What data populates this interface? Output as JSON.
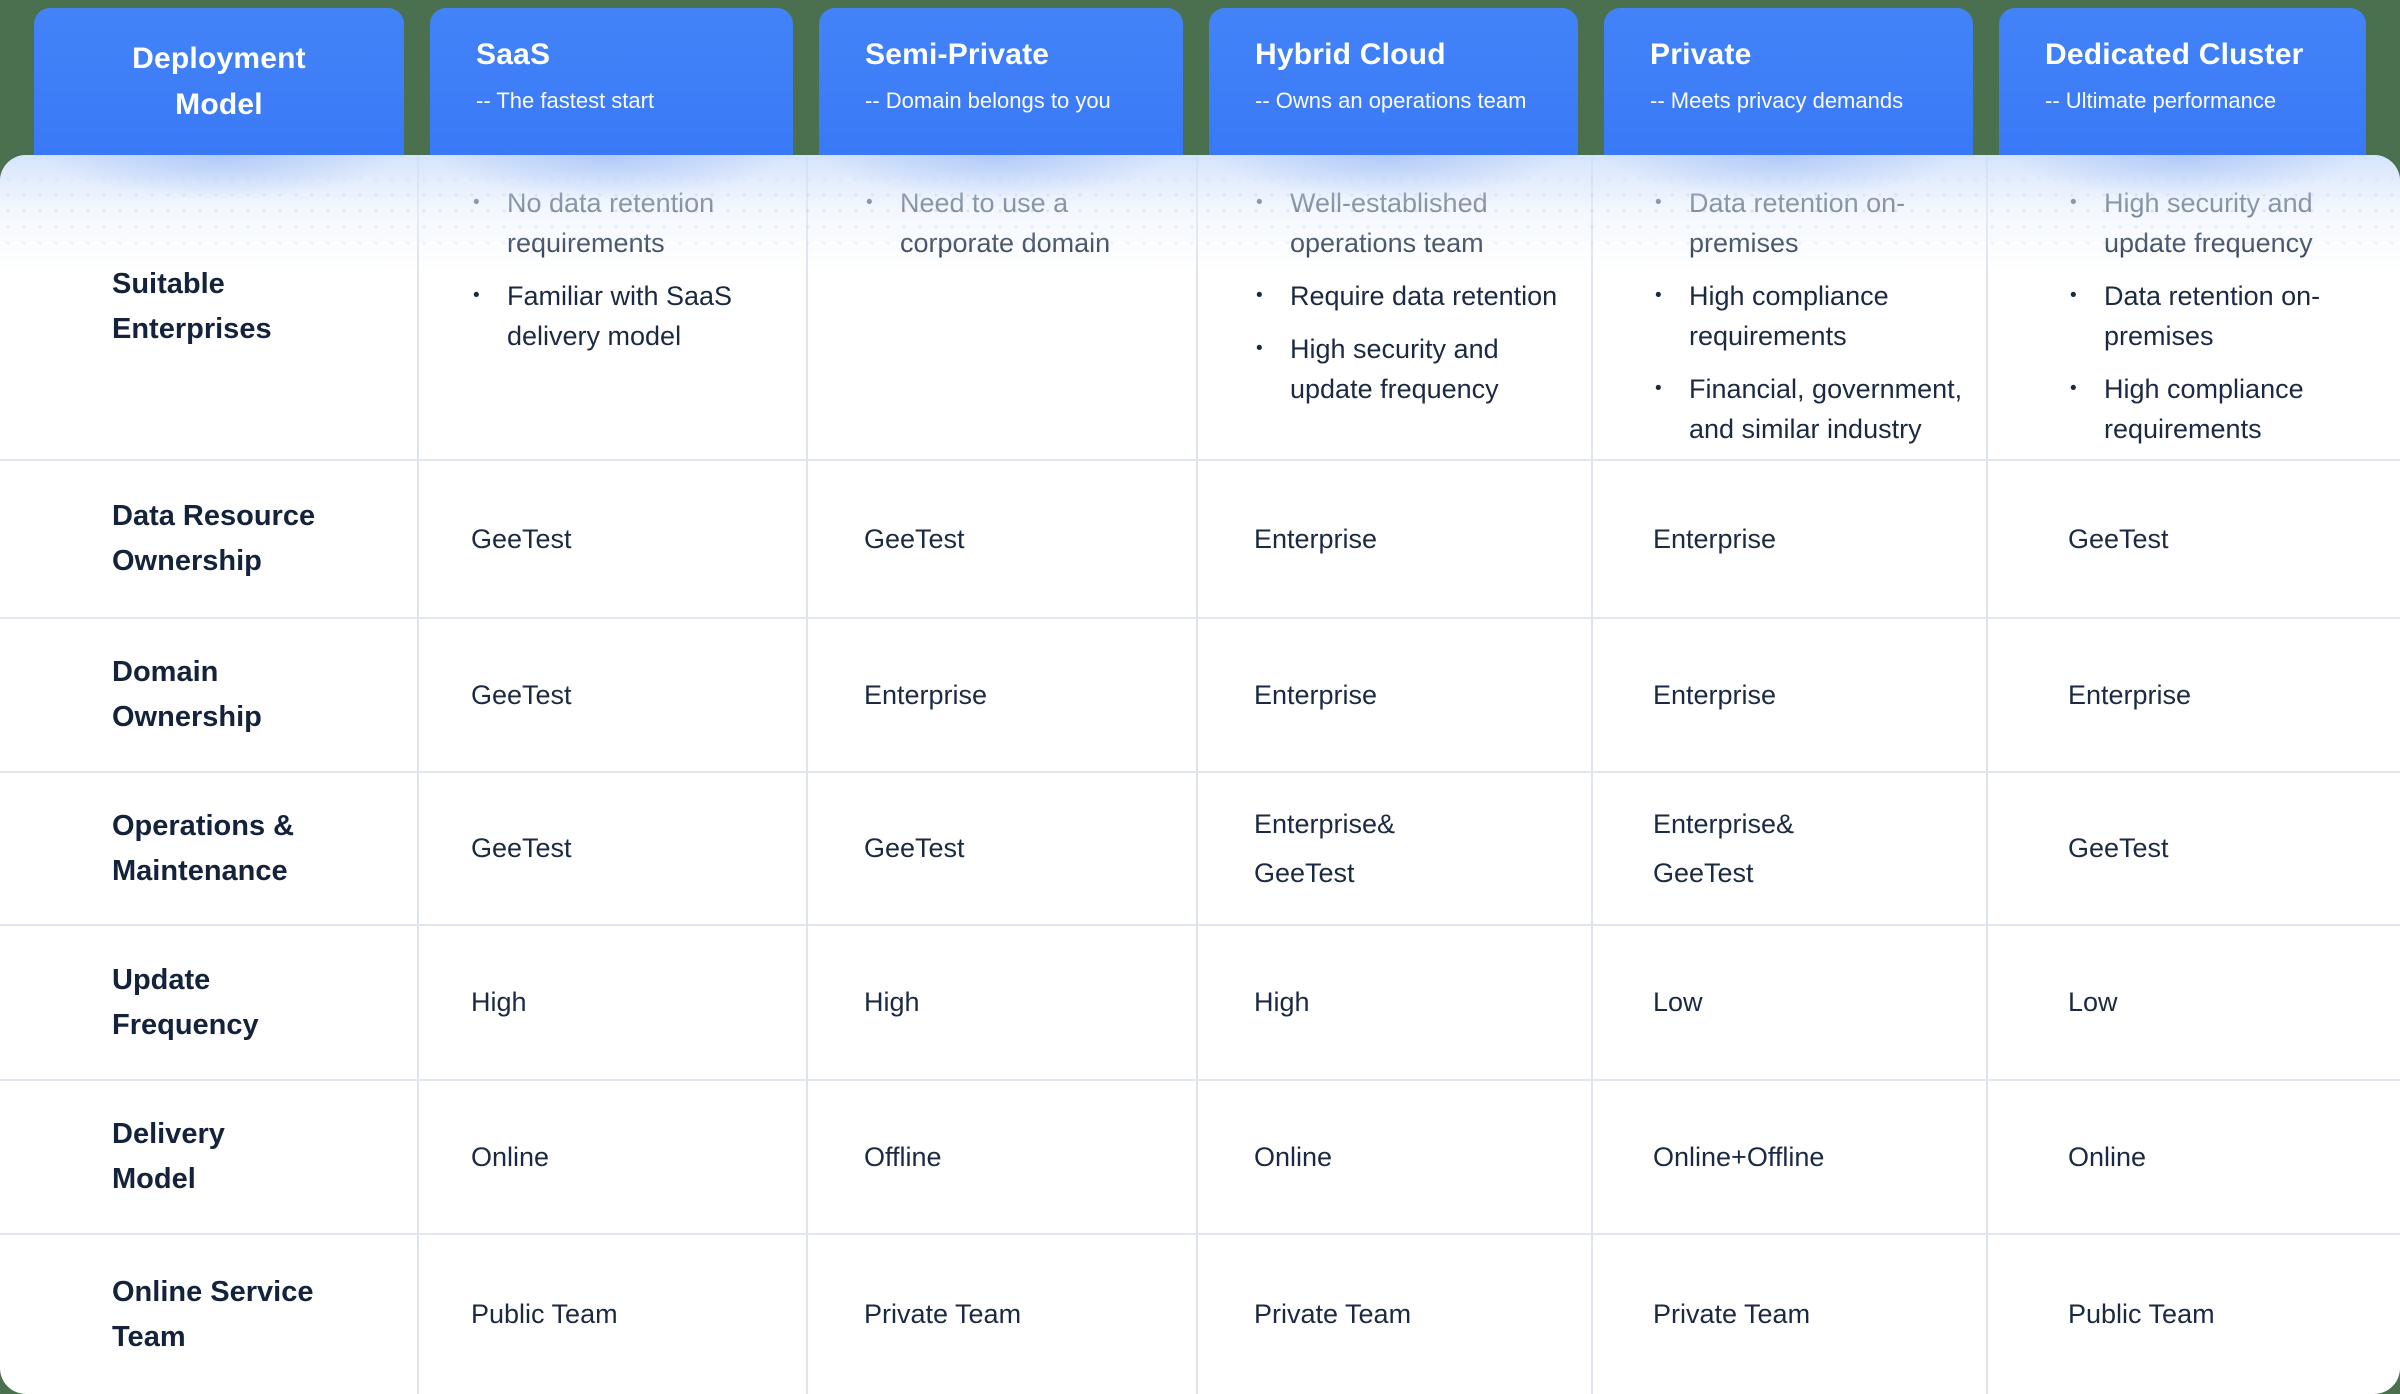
{
  "colors": {
    "background_green": "#4A7050",
    "header_blue": "#3C7CF7",
    "body_text": "#1B2A42",
    "grid_line": "#E3E6EE"
  },
  "chart_data": {
    "type": "table",
    "corner_header": {
      "title": "Deployment Model",
      "title_lines": [
        "Deployment",
        "Model"
      ]
    },
    "columns": [
      {
        "title": "SaaS",
        "subtitle": "-- The fastest start"
      },
      {
        "title": "Semi-Private",
        "subtitle": "-- Domain belongs to you"
      },
      {
        "title": "Hybrid Cloud",
        "subtitle": "-- Owns an operations team"
      },
      {
        "title": "Private",
        "subtitle": "-- Meets privacy demands"
      },
      {
        "title": "Dedicated Cluster",
        "subtitle": "-- Ultimate performance"
      }
    ],
    "rows": [
      {
        "label": "Suitable Enterprises",
        "label_lines": [
          "Suitable",
          "Enterprises"
        ],
        "style": "bullets",
        "cells": [
          {
            "bullets": [
              "No data retention requirements",
              "Familiar with SaaS delivery model"
            ]
          },
          {
            "bullets": [
              "Need to use a corporate domain"
            ]
          },
          {
            "bullets": [
              "Well-established operations team",
              "Require data retention",
              "High security and update frequency"
            ]
          },
          {
            "bullets": [
              "Data retention on-premises",
              "High compliance requirements",
              "Financial, government, and similar industry"
            ]
          },
          {
            "bullets": [
              "High security and update frequency",
              "Data retention on-premises",
              "High compliance requirements"
            ]
          }
        ]
      },
      {
        "label": "Data Resource Ownership",
        "label_lines": [
          "Data Resource",
          "Ownership"
        ],
        "style": "text",
        "cells": [
          {
            "lines": [
              "GeeTest"
            ]
          },
          {
            "lines": [
              "GeeTest"
            ]
          },
          {
            "lines": [
              "Enterprise"
            ]
          },
          {
            "lines": [
              "Enterprise"
            ]
          },
          {
            "lines": [
              "GeeTest"
            ]
          }
        ]
      },
      {
        "label": "Domain Ownership",
        "label_lines": [
          "Domain",
          "Ownership"
        ],
        "style": "text",
        "cells": [
          {
            "lines": [
              "GeeTest"
            ]
          },
          {
            "lines": [
              "Enterprise"
            ]
          },
          {
            "lines": [
              "Enterprise"
            ]
          },
          {
            "lines": [
              "Enterprise"
            ]
          },
          {
            "lines": [
              "Enterprise"
            ]
          }
        ]
      },
      {
        "label": "Operations & Maintenance",
        "label_lines": [
          "Operations &",
          "Maintenance"
        ],
        "style": "text",
        "cells": [
          {
            "lines": [
              "GeeTest"
            ]
          },
          {
            "lines": [
              "GeeTest"
            ]
          },
          {
            "lines": [
              "Enterprise&",
              "GeeTest"
            ]
          },
          {
            "lines": [
              "Enterprise&",
              "GeeTest"
            ]
          },
          {
            "lines": [
              "GeeTest"
            ]
          }
        ]
      },
      {
        "label": "Update Frequency",
        "label_lines": [
          "Update",
          "Frequency"
        ],
        "style": "text",
        "cells": [
          {
            "lines": [
              "High"
            ]
          },
          {
            "lines": [
              "High"
            ]
          },
          {
            "lines": [
              "High"
            ]
          },
          {
            "lines": [
              "Low"
            ]
          },
          {
            "lines": [
              "Low"
            ]
          }
        ]
      },
      {
        "label": "Delivery Model",
        "label_lines": [
          "Delivery",
          "Model"
        ],
        "style": "text",
        "cells": [
          {
            "lines": [
              "Online"
            ]
          },
          {
            "lines": [
              "Offline"
            ]
          },
          {
            "lines": [
              "Online"
            ]
          },
          {
            "lines": [
              "Online+Offline"
            ]
          },
          {
            "lines": [
              "Online"
            ]
          }
        ]
      },
      {
        "label": "Online Service Team",
        "label_lines": [
          "Online Service",
          "Team"
        ],
        "style": "text",
        "cells": [
          {
            "lines": [
              "Public Team"
            ]
          },
          {
            "lines": [
              "Private Team"
            ]
          },
          {
            "lines": [
              "Private Team"
            ]
          },
          {
            "lines": [
              "Private Team"
            ]
          },
          {
            "lines": [
              "Public Team"
            ]
          }
        ]
      }
    ]
  }
}
